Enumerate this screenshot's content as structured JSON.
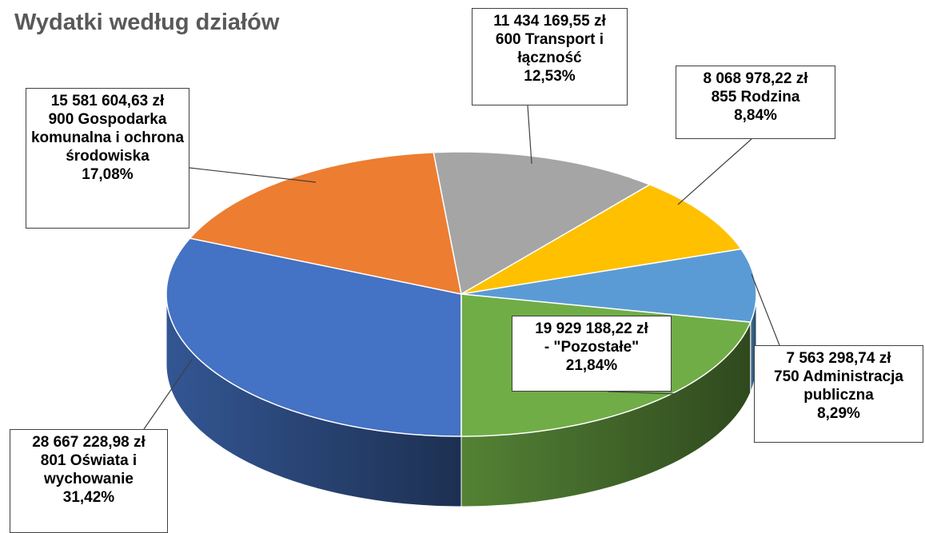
{
  "chart_data": {
    "type": "pie",
    "title": "Wydatki według działów",
    "categories": [
      "801 Oświata i wychowanie",
      "900 Gospodarka komunalna i ochrona środowiska",
      "600 Transport i łączność",
      "855 Rodzina",
      "750 Administracja publiczna",
      "- \"Pozostałe\""
    ],
    "amount_labels": [
      "28 667 228,98 zł",
      "15 581 604,63 zł",
      "11 434 169,55 zł",
      "8 068 978,22 zł",
      "7 563 298,74 zł",
      "19 929 188,22 zł"
    ],
    "values": [
      31.42,
      17.08,
      12.53,
      8.84,
      8.29,
      21.84
    ],
    "value_labels": [
      "31,42%",
      "17,08%",
      "12,53%",
      "8,84%",
      "8,29%",
      "21,84%"
    ],
    "colors": [
      "#4472c4",
      "#ed7d31",
      "#a5a5a5",
      "#ffc000",
      "#5b9bd5",
      "#70ad47"
    ]
  }
}
